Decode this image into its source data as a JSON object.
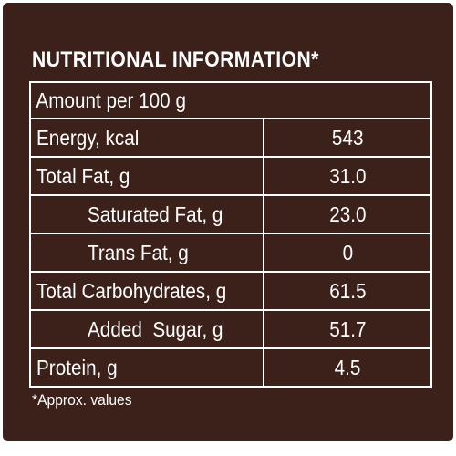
{
  "panel": {
    "title": "NUTRITIONAL INFORMATION*",
    "serving": "Amount per 100 g",
    "rows": [
      {
        "label": "Energy, kcal",
        "value": "543"
      },
      {
        "label": "Total Fat, g",
        "value": "31.0"
      },
      {
        "label": "Saturated Fat, g",
        "value": "23.0"
      },
      {
        "label": "Trans Fat, g",
        "value": "0"
      },
      {
        "label": "Total Carbohydrates, g",
        "value": "61.5"
      },
      {
        "label": "Added  Sugar, g",
        "value": "51.7"
      },
      {
        "label": "Protein, g",
        "value": "4.5"
      }
    ],
    "footnote": "*Approx. values"
  },
  "colors": {
    "background": "#3c201a",
    "text": "#ffffff",
    "border": "#ffffff"
  }
}
